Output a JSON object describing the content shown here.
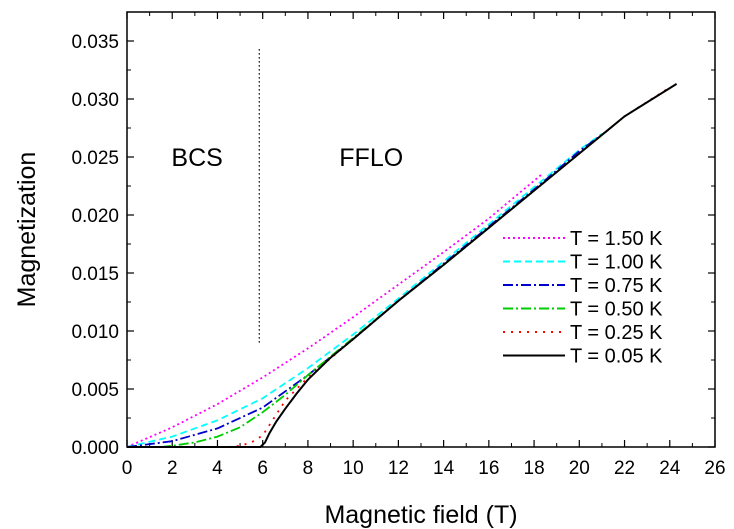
{
  "chart_data": {
    "type": "line",
    "title": "",
    "xlabel": "Magnetic field (T)",
    "ylabel": "Magnetization",
    "xlim": [
      0,
      26
    ],
    "ylim": [
      0,
      0.0375
    ],
    "x_ticks": [
      "0",
      "2",
      "4",
      "6",
      "8",
      "10",
      "12",
      "14",
      "16",
      "18",
      "20",
      "22",
      "24",
      "26"
    ],
    "y_ticks": [
      "0.000",
      "0.005",
      "0.010",
      "0.015",
      "0.020",
      "0.025",
      "0.030",
      "0.035"
    ],
    "grid": false,
    "legend_position": "right",
    "annotations": [
      {
        "text": "BCS",
        "x": 3.1,
        "y": 0.025
      },
      {
        "text": "FFLO",
        "x": 10.8,
        "y": 0.025
      }
    ],
    "divider": {
      "x": 5.85,
      "y_range": [
        0.0088,
        0.0343
      ],
      "style": "dotted"
    },
    "series": [
      {
        "name": "T = 1.50 K",
        "color": "#ff00ff",
        "dash": "2,3",
        "x": [
          0,
          2,
          4,
          6,
          8,
          10,
          12,
          14,
          16,
          18.4
        ],
        "y": [
          0,
          0.0017,
          0.0037,
          0.006,
          0.0085,
          0.0112,
          0.014,
          0.0168,
          0.0197,
          0.0236
        ]
      },
      {
        "name": "T = 1.00 K",
        "color": "#00ffff",
        "dash": "7,4",
        "x": [
          0,
          2,
          4,
          6,
          8,
          10,
          12,
          14,
          16,
          18,
          20,
          21
        ],
        "y": [
          0,
          0.0009,
          0.0023,
          0.0042,
          0.0068,
          0.0097,
          0.0128,
          0.016,
          0.0192,
          0.0224,
          0.0256,
          0.027
        ]
      },
      {
        "name": "T = 0.75 K",
        "color": "#0000cc",
        "dash": "10,3,2,3",
        "x": [
          0,
          2,
          4,
          6,
          8,
          10,
          12,
          14,
          16,
          18,
          20,
          21.4
        ],
        "y": [
          0,
          0.0005,
          0.0016,
          0.0034,
          0.0062,
          0.0093,
          0.0126,
          0.0158,
          0.019,
          0.0222,
          0.0255,
          0.0275
        ]
      },
      {
        "name": "T = 0.50 K",
        "color": "#00cc00",
        "dash": "10,3,2,3",
        "x": [
          1.5,
          2,
          3,
          4,
          5,
          6,
          7,
          8,
          10,
          12,
          14,
          16,
          18,
          20,
          22
        ],
        "y": [
          0,
          0.0001,
          0.0004,
          0.0009,
          0.0017,
          0.003,
          0.0045,
          0.0062,
          0.0094,
          0.0126,
          0.0157,
          0.0189,
          0.0221,
          0.0253,
          0.0285
        ]
      },
      {
        "name": "T = 0.25 K",
        "color": "#ff0000",
        "dash": "2,6",
        "x": [
          4.5,
          5,
          5.5,
          6,
          6.5,
          7,
          8,
          10,
          12,
          14,
          16,
          18,
          20,
          22,
          24
        ],
        "y": [
          0,
          0.0001,
          0.0004,
          0.001,
          0.0025,
          0.004,
          0.006,
          0.0093,
          0.0126,
          0.0157,
          0.0189,
          0.0221,
          0.0253,
          0.0285,
          0.031
        ]
      },
      {
        "name": "T = 0.05 K",
        "color": "#000000",
        "dash": "",
        "x": [
          0,
          5.9,
          6.1,
          6.3,
          6.6,
          7,
          7.5,
          8,
          9,
          10,
          12,
          14,
          16,
          18,
          20,
          22,
          24.3
        ],
        "y": [
          0,
          0,
          0.0004,
          0.0012,
          0.0022,
          0.0033,
          0.0046,
          0.0058,
          0.0077,
          0.0093,
          0.0126,
          0.0157,
          0.0189,
          0.0221,
          0.0253,
          0.0285,
          0.0313
        ]
      }
    ]
  }
}
